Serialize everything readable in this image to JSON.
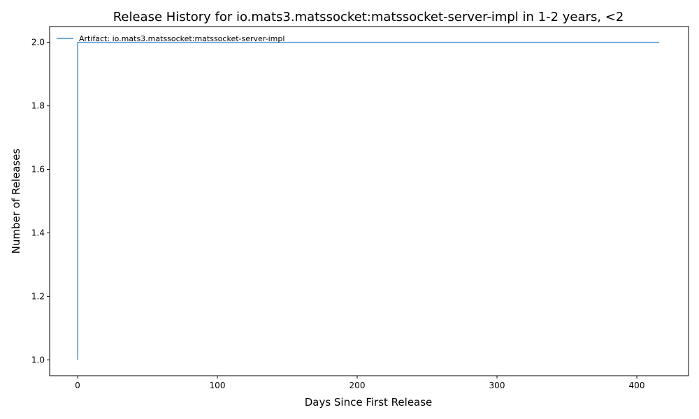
{
  "chart_data": {
    "type": "line",
    "title": "Release History for io.mats3.matssocket:matssocket-server-impl in 1-2 years, <2",
    "xlabel": "Days Since First Release",
    "ylabel": "Number of Releases",
    "xlim": [
      -20,
      437
    ],
    "ylim": [
      0.95,
      2.05
    ],
    "x_ticks": [
      0,
      100,
      200,
      300,
      400
    ],
    "x_tick_labels": [
      "0",
      "100",
      "200",
      "300",
      "400"
    ],
    "y_ticks": [
      1.0,
      1.2,
      1.4,
      1.6,
      1.8,
      2.0
    ],
    "y_tick_labels": [
      "1.0",
      "1.2",
      "1.4",
      "1.6",
      "1.8",
      "2.0"
    ],
    "grid": false,
    "legend_position": "top-left",
    "series": [
      {
        "name": "Artifact: io.mats3.matssocket:matssocket-server-impl",
        "color": "#5a9fd4",
        "x": [
          0,
          0,
          416
        ],
        "y": [
          1,
          2,
          2
        ]
      }
    ]
  }
}
